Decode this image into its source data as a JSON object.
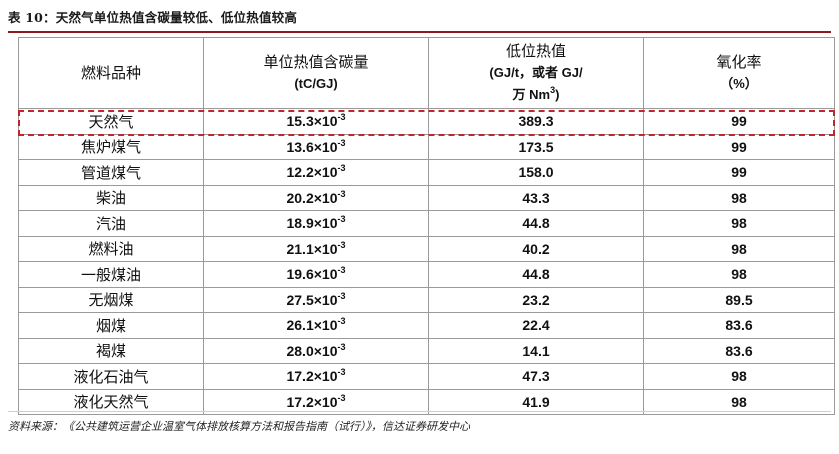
{
  "title": "表 10：天然气单位热值含碳量较低、低位热值较高",
  "headers": {
    "fuel": "燃料品种",
    "carbon_main": "单位热值含碳量",
    "carbon_unit": "(tC/GJ)",
    "lhv_main": "低位热值",
    "lhv_unit1": "(GJ/t，或者 GJ/",
    "lhv_unit2": "万 Nm",
    "lhv_unit2_sup": "3",
    "lhv_unit2_end": ")",
    "ox_main": "氧化率",
    "ox_unit": "（%）"
  },
  "exponent": "-3",
  "rows": [
    {
      "name": "天然气",
      "carbon": "15.3×10",
      "lhv": "389.3",
      "ox": "99"
    },
    {
      "name": "焦炉煤气",
      "carbon": "13.6×10",
      "lhv": "173.5",
      "ox": "99"
    },
    {
      "name": "管道煤气",
      "carbon": "12.2×10",
      "lhv": "158.0",
      "ox": "99"
    },
    {
      "name": "柴油",
      "carbon": "20.2×10",
      "lhv": "43.3",
      "ox": "98"
    },
    {
      "name": "汽油",
      "carbon": "18.9×10",
      "lhv": "44.8",
      "ox": "98"
    },
    {
      "name": "燃料油",
      "carbon": "21.1×10",
      "lhv": "40.2",
      "ox": "98"
    },
    {
      "name": "一般煤油",
      "carbon": "19.6×10",
      "lhv": "44.8",
      "ox": "98"
    },
    {
      "name": "无烟煤",
      "carbon": "27.5×10",
      "lhv": "23.2",
      "ox": "89.5"
    },
    {
      "name": "烟煤",
      "carbon": "26.1×10",
      "lhv": "22.4",
      "ox": "83.6"
    },
    {
      "name": "褐煤",
      "carbon": "28.0×10",
      "lhv": "14.1",
      "ox": "83.6"
    },
    {
      "name": "液化石油气",
      "carbon": "17.2×10",
      "lhv": "47.3",
      "ox": "98"
    },
    {
      "name": "液化天然气",
      "carbon": "17.2×10",
      "lhv": "41.9",
      "ox": "98"
    }
  ],
  "source": "资料来源：《公共建筑运营企业温室气体排放核算方法和报告指南（试行）》，信达证券研发中心",
  "colors": {
    "highlight": "#c0262c",
    "title_rule": "#8b1a1a"
  }
}
